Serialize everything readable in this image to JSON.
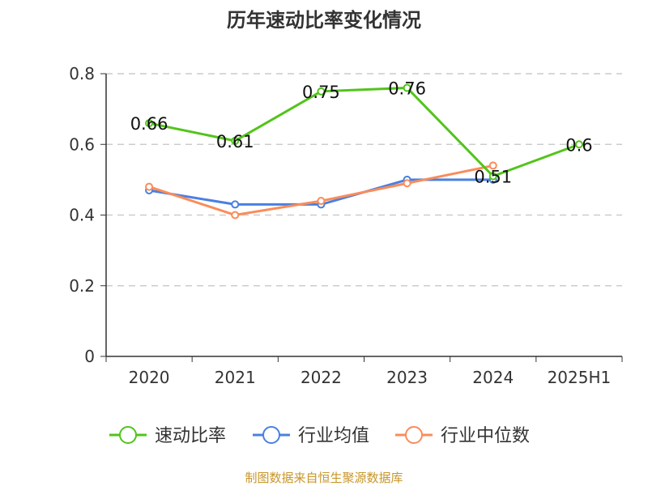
{
  "chart_data": {
    "type": "line",
    "title": "历年速动比率变化情况",
    "categories": [
      "2020",
      "2021",
      "2022",
      "2023",
      "2024",
      "2025H1"
    ],
    "ylim": [
      0,
      0.8
    ],
    "yticks": [
      "0",
      "0.2",
      "0.4",
      "0.6",
      "0.8"
    ],
    "grid": true,
    "legend_position": "bottom",
    "series": [
      {
        "name": "速动比率",
        "color": "#52c41a",
        "values": [
          0.66,
          0.61,
          0.75,
          0.76,
          0.51,
          0.6
        ],
        "labels": [
          "0.66",
          "0.61",
          "0.75",
          "0.76",
          "0.51",
          "0.6"
        ]
      },
      {
        "name": "行业均值",
        "color": "#4a80e0",
        "values": [
          0.47,
          0.43,
          0.43,
          0.5,
          0.5,
          null
        ]
      },
      {
        "name": "行业中位数",
        "color": "#fa8c5a",
        "values": [
          0.48,
          0.4,
          0.44,
          0.49,
          0.54,
          null
        ]
      }
    ]
  },
  "footer": "制图数据来自恒生聚源数据库"
}
